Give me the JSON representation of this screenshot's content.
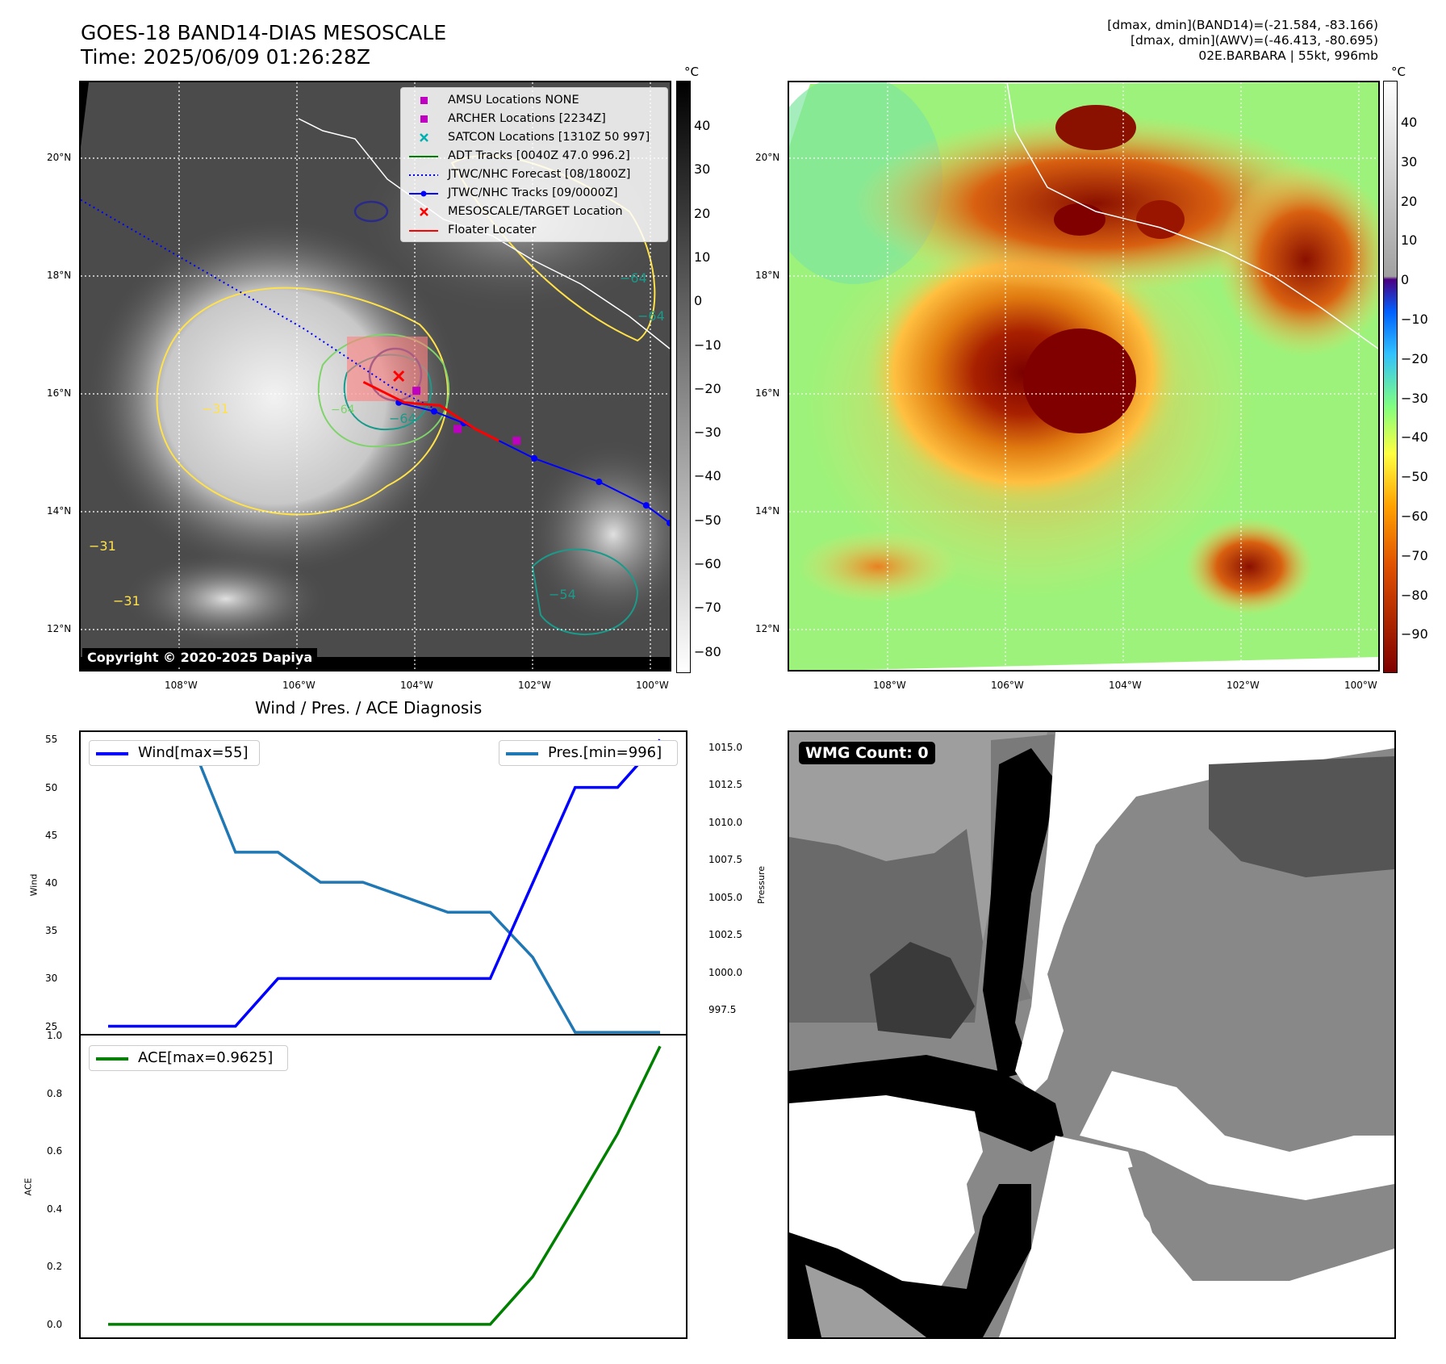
{
  "header": {
    "title_line1": "GOES-18 BAND14-DIAS MESOSCALE",
    "title_line2": "Time: 2025/06/09 01:26:28Z",
    "info_line1": "[dmax, dmin](BAND14)=(-21.584, -83.166)",
    "info_line2": "[dmax, dmin](AWV)=(-46.413, -80.695)",
    "info_line3": "02E.BARBARA | 55kt, 996mb"
  },
  "map_left": {
    "copyright": "Copyright © 2020-2025 Dapiya",
    "colorbar_unit": "°C",
    "colorbar_ticks": [
      "40",
      "30",
      "20",
      "10",
      "0",
      "−10",
      "−20",
      "−30",
      "−40",
      "−50",
      "−60",
      "−70",
      "−80"
    ],
    "colorbar_colors": [
      "#000000",
      "#ffffff"
    ],
    "contour_labels": [
      "−64",
      "−31",
      "−31",
      "−31",
      "−54",
      "−64",
      "−64",
      "−64"
    ],
    "legend": [
      {
        "label": "AMSU Locations NONE",
        "symbol": "square",
        "color": "#c000c0"
      },
      {
        "label": "ARCHER Locations [2234Z]",
        "symbol": "square",
        "color": "#c000c0"
      },
      {
        "label": "SATCON Locations [1310Z 50 997]",
        "symbol": "x",
        "color": "#00b0b0"
      },
      {
        "label": "ADT Tracks [0040Z 47.0 996.2]",
        "symbol": "line",
        "color": "#008000"
      },
      {
        "label": "JTWC/NHC Forecast [08/1800Z]",
        "symbol": "dotted",
        "color": "#0000ff"
      },
      {
        "label": "JTWC/NHC Tracks [09/0000Z]",
        "symbol": "line-dot",
        "color": "#0000ff"
      },
      {
        "label": "MESOSCALE/TARGET Location",
        "symbol": "x",
        "color": "#ff0000"
      },
      {
        "label": "Floater Locater",
        "symbol": "line",
        "color": "#ff0000"
      }
    ]
  },
  "map_right": {
    "colorbar_unit": "°C",
    "colorbar_ticks": [
      "40",
      "30",
      "20",
      "10",
      "0",
      "−10",
      "−20",
      "−30",
      "−40",
      "−50",
      "−60",
      "−70",
      "−80",
      "−90"
    ],
    "colorbar_colors": [
      "#ffffff",
      "#7f7f7f",
      "#4b0082",
      "#0060ff",
      "#30c0ff",
      "#80ff80",
      "#ffff40",
      "#ffa000",
      "#e05000",
      "#800000"
    ]
  },
  "map_axes": {
    "lon_labels": [
      "108°W",
      "106°W",
      "104°W",
      "102°W",
      "100°W"
    ],
    "lat_labels": [
      "20°N",
      "18°N",
      "16°N",
      "14°N",
      "12°N"
    ]
  },
  "diagnosis": {
    "title": "Wind / Pres. / ACE Diagnosis",
    "wind_legend": "Wind[max=55]",
    "pres_legend": "Pres.[min=996]",
    "ace_legend": "ACE[max=0.9625]",
    "wind_ylabel": "Wind",
    "pres_ylabel": "Pressure",
    "ace_ylabel": "ACE",
    "wind_ticks": [
      "55",
      "50",
      "45",
      "40",
      "35",
      "30",
      "25"
    ],
    "pres_ticks": [
      "1015.0",
      "1012.5",
      "1010.0",
      "1007.5",
      "1005.0",
      "1002.5",
      "1000.0",
      "997.5"
    ],
    "ace_ticks": [
      "1.0",
      "0.8",
      "0.6",
      "0.4",
      "0.2",
      "0.0"
    ],
    "wind_color": "#0000ff",
    "pres_color": "#1f77b4",
    "ace_color": "#008000"
  },
  "wmg": {
    "label": "WMG Count: 0"
  },
  "chart_data": [
    {
      "type": "line",
      "x": [
        0,
        1,
        2,
        3,
        4,
        5,
        6,
        7,
        8,
        9,
        10,
        11,
        12,
        13
      ],
      "series": [
        {
          "name": "Wind[max=55]",
          "axis": "left",
          "values": [
            25,
            25,
            25,
            25,
            30,
            30,
            30,
            30,
            30,
            30,
            40,
            50,
            50,
            55
          ]
        },
        {
          "name": "Pres.[min=996]",
          "axis": "right",
          "values": [
            1015,
            1015,
            1015,
            1008,
            1008,
            1006,
            1006,
            1005,
            1004,
            1004,
            1001,
            996,
            996,
            996
          ]
        }
      ],
      "ylim": [
        24.2,
        55.8
      ],
      "ylim_right": [
        995.9,
        1016
      ],
      "ylabel": "Wind",
      "ylabel_right": "Pressure",
      "legend": [
        "top-left",
        "top-right"
      ]
    },
    {
      "type": "line",
      "x": [
        0,
        1,
        2,
        3,
        4,
        5,
        6,
        7,
        8,
        9,
        10,
        11,
        12,
        13
      ],
      "series": [
        {
          "name": "ACE[max=0.9625]",
          "values": [
            0,
            0,
            0,
            0,
            0,
            0,
            0,
            0,
            0,
            0,
            0.165,
            0.41,
            0.66,
            0.9625
          ]
        }
      ],
      "ylim": [
        -0.045,
        1.0
      ],
      "ylabel": "ACE",
      "legend": "top-left"
    },
    {
      "type": "heatmap",
      "title": "GOES-18 BAND14-DIAS MESOSCALE",
      "xlim": [
        -109.7,
        -99.7
      ],
      "ylim": [
        11.4,
        21.4
      ],
      "jtwc_forecast_track": [
        [
          -109.7,
          19.4
        ],
        [
          -105.9,
          17.2
        ],
        [
          -104.4,
          16.2
        ],
        [
          -103.7,
          15.85
        ]
      ],
      "jtwc_best_track": [
        [
          -104.3,
          15.95
        ],
        [
          -103.7,
          15.8
        ],
        [
          -103.2,
          15.6
        ],
        [
          -102.0,
          15.0
        ],
        [
          -100.9,
          14.6
        ],
        [
          -100.1,
          14.2
        ],
        [
          -99.7,
          13.9
        ]
      ],
      "floater_track": [
        [
          -104.9,
          16.3
        ],
        [
          -104.2,
          15.95
        ],
        [
          -103.6,
          15.9
        ],
        [
          -103.0,
          15.5
        ],
        [
          -102.6,
          15.3
        ]
      ],
      "archer_locations": [
        [
          -103.3,
          15.5
        ],
        [
          -102.3,
          15.3
        ],
        [
          -104.0,
          16.15
        ]
      ],
      "target_location": [
        [
          -104.3,
          16.4
        ]
      ]
    }
  ]
}
